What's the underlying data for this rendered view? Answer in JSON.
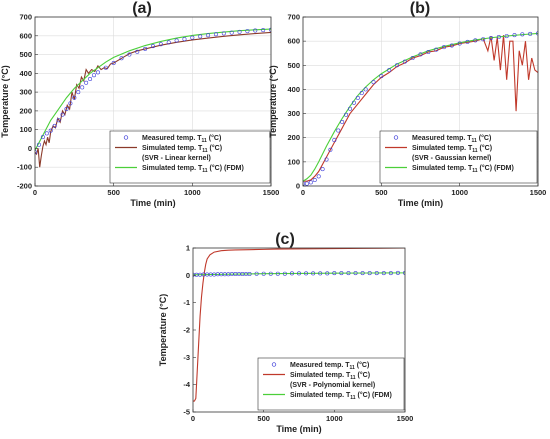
{
  "chart_data": [
    {
      "type": "line",
      "panel_label": "(a)",
      "xlabel": "Time (min)",
      "ylabel": "Temperature (°C)",
      "xlim": [
        0,
        1500
      ],
      "ylim": [
        -200,
        700
      ],
      "xticks": [
        0,
        500,
        1000,
        1500
      ],
      "yticks": [
        -200,
        -100,
        0,
        100,
        200,
        300,
        400,
        500,
        600,
        700
      ],
      "grid": true,
      "legend_position": "bottom-right",
      "series": [
        {
          "name": "Measured temp. T11 (°C)",
          "legend_text": "Measured temp. T",
          "legend_sub": "11",
          "legend_tail": " (°C)",
          "style": "markers",
          "color": "#3b3bd9",
          "x": [
            0,
            25,
            50,
            75,
            100,
            125,
            150,
            175,
            200,
            225,
            250,
            275,
            300,
            325,
            350,
            375,
            400,
            450,
            500,
            550,
            600,
            650,
            700,
            750,
            800,
            850,
            900,
            950,
            1000,
            1050,
            1100,
            1150,
            1200,
            1250,
            1300,
            1350,
            1400,
            1450,
            1500
          ],
          "y": [
            -20,
            20,
            60,
            80,
            95,
            120,
            150,
            180,
            210,
            240,
            270,
            300,
            325,
            350,
            370,
            390,
            405,
            430,
            455,
            480,
            500,
            515,
            530,
            545,
            555,
            565,
            575,
            582,
            590,
            597,
            603,
            608,
            613,
            617,
            621,
            625,
            628,
            630,
            632
          ]
        },
        {
          "name": "Simulated temp. T11 (°C) (SVR - Linear kernel)",
          "legend_text": "Simulated temp. T",
          "legend_sub": "11",
          "legend_tail": " (°C)",
          "legend_line2": "(SVR - Linear kernel)",
          "style": "line",
          "color": "#8b3a2a",
          "x": [
            0,
            10,
            20,
            30,
            40,
            50,
            60,
            70,
            80,
            90,
            100,
            115,
            130,
            145,
            160,
            175,
            190,
            205,
            220,
            235,
            250,
            265,
            280,
            295,
            310,
            325,
            340,
            360,
            380,
            400,
            420,
            440,
            460,
            480,
            500,
            550,
            600,
            650,
            700,
            800,
            900,
            1000,
            1100,
            1200,
            1300,
            1400,
            1500
          ],
          "y": [
            -20,
            -30,
            0,
            -100,
            -40,
            10,
            40,
            20,
            60,
            30,
            90,
            120,
            110,
            160,
            140,
            200,
            180,
            230,
            210,
            300,
            260,
            340,
            320,
            380,
            360,
            420,
            400,
            420,
            410,
            440,
            420,
            430,
            425,
            450,
            455,
            480,
            505,
            520,
            530,
            550,
            565,
            578,
            588,
            597,
            605,
            612,
            618
          ]
        },
        {
          "name": "Simulated temp. T11 (°C) (FDM)",
          "legend_text": "Simulated temp. T",
          "legend_sub": "11",
          "legend_tail": " (°C) (FDM)",
          "style": "line",
          "color": "#4ccf3a",
          "x": [
            0,
            25,
            50,
            75,
            100,
            150,
            200,
            250,
            300,
            350,
            400,
            450,
            500,
            600,
            700,
            800,
            900,
            1000,
            1100,
            1200,
            1300,
            1400,
            1500
          ],
          "y": [
            -10,
            30,
            70,
            110,
            150,
            210,
            270,
            320,
            360,
            400,
            430,
            460,
            485,
            520,
            548,
            570,
            588,
            602,
            612,
            620,
            627,
            632,
            636
          ]
        }
      ]
    },
    {
      "type": "line",
      "panel_label": "(b)",
      "xlabel": "Time (min)",
      "ylabel": "Temperature (°C)",
      "xlim": [
        0,
        1500
      ],
      "ylim": [
        0,
        700
      ],
      "xticks": [
        0,
        500,
        1000,
        1500
      ],
      "yticks": [
        0,
        100,
        200,
        300,
        400,
        500,
        600,
        700
      ],
      "grid": true,
      "legend_position": "bottom-right",
      "series": [
        {
          "name": "Measured temp. T11 (°C)",
          "legend_text": "Measured temp. T",
          "legend_sub": "11",
          "legend_tail": " (°C)",
          "style": "markers",
          "color": "#3b3bd9",
          "x": [
            0,
            25,
            50,
            75,
            100,
            125,
            150,
            175,
            200,
            225,
            250,
            275,
            300,
            325,
            350,
            375,
            400,
            450,
            500,
            550,
            600,
            650,
            700,
            750,
            800,
            850,
            900,
            950,
            1000,
            1050,
            1100,
            1150,
            1200,
            1250,
            1300,
            1350,
            1400,
            1450,
            1500
          ],
          "y": [
            10,
            10,
            15,
            25,
            40,
            70,
            110,
            150,
            190,
            230,
            265,
            295,
            320,
            345,
            365,
            385,
            400,
            430,
            455,
            480,
            500,
            515,
            530,
            545,
            555,
            565,
            575,
            582,
            590,
            597,
            603,
            608,
            613,
            617,
            621,
            625,
            628,
            630,
            632
          ]
        },
        {
          "name": "Simulated temp. T11 (°C) (SVR - Gaussian kernel)",
          "legend_text": "Simulated temp. T",
          "legend_sub": "11",
          "legend_tail": " (°C)",
          "legend_line2": "(SVR - Gaussian kernel)",
          "style": "line",
          "color": "#c0392b",
          "x": [
            0,
            25,
            50,
            75,
            100,
            150,
            200,
            250,
            300,
            350,
            400,
            450,
            500,
            550,
            600,
            650,
            700,
            750,
            800,
            850,
            900,
            950,
            1000,
            1050,
            1100,
            1150,
            1180,
            1200,
            1220,
            1240,
            1260,
            1280,
            1300,
            1320,
            1340,
            1360,
            1380,
            1400,
            1420,
            1440,
            1460,
            1480,
            1500
          ],
          "y": [
            20,
            20,
            25,
            40,
            60,
            120,
            180,
            240,
            300,
            340,
            380,
            420,
            450,
            470,
            495,
            510,
            530,
            540,
            555,
            560,
            575,
            580,
            590,
            595,
            600,
            610,
            560,
            620,
            520,
            615,
            480,
            625,
            440,
            600,
            600,
            310,
            560,
            500,
            600,
            440,
            530,
            480,
            470
          ]
        },
        {
          "name": "Simulated temp. T11 (°C) (FDM)",
          "legend_text": "Simulated temp. T",
          "legend_sub": "11",
          "legend_tail": " (°C) (FDM)",
          "style": "line",
          "color": "#4ccf3a",
          "x": [
            0,
            25,
            50,
            75,
            100,
            150,
            200,
            250,
            300,
            350,
            400,
            450,
            500,
            600,
            700,
            800,
            900,
            1000,
            1100,
            1200,
            1300,
            1400,
            1500
          ],
          "y": [
            20,
            30,
            45,
            70,
            100,
            165,
            225,
            280,
            330,
            375,
            410,
            440,
            465,
            505,
            535,
            560,
            578,
            593,
            605,
            614,
            621,
            627,
            632
          ]
        }
      ]
    },
    {
      "type": "line",
      "panel_label": "(c)",
      "xlabel": "Time (min)",
      "ylabel": "Temperature (°C)",
      "xlim": [
        0,
        1500
      ],
      "ylim": [
        -5,
        1
      ],
      "xticks": [
        0,
        500,
        1000,
        1500
      ],
      "yticks": [
        -5,
        -4,
        -3,
        -2,
        -1,
        0,
        1
      ],
      "grid": false,
      "legend_position": "bottom-right",
      "series": [
        {
          "name": "Measured temp. T11 (°C)",
          "legend_text": "Measured temp. T",
          "legend_sub": "11",
          "legend_tail": " (°C)",
          "style": "markers",
          "color": "#3b3bd9",
          "x": [
            0,
            25,
            50,
            75,
            100,
            125,
            150,
            175,
            200,
            225,
            250,
            275,
            300,
            325,
            350,
            375,
            400,
            450,
            500,
            550,
            600,
            650,
            700,
            750,
            800,
            850,
            900,
            950,
            1000,
            1050,
            1100,
            1150,
            1200,
            1250,
            1300,
            1350,
            1400,
            1450,
            1500
          ],
          "y": [
            0.02,
            0.02,
            0.02,
            0.03,
            0.03,
            0.03,
            0.03,
            0.04,
            0.04,
            0.04,
            0.04,
            0.05,
            0.05,
            0.05,
            0.05,
            0.05,
            0.05,
            0.06,
            0.06,
            0.06,
            0.06,
            0.06,
            0.07,
            0.07,
            0.07,
            0.07,
            0.07,
            0.07,
            0.08,
            0.08,
            0.08,
            0.08,
            0.08,
            0.08,
            0.08,
            0.08,
            0.08,
            0.09,
            0.09
          ]
        },
        {
          "name": "Simulated temp. T11 (°C) (SVR - Polynomial kernel)",
          "legend_text": "Simulated temp. T",
          "legend_sub": "11",
          "legend_tail": " (°C)",
          "legend_line2": "(SVR - Polynomial kernel)",
          "style": "line",
          "color": "#c0392b",
          "x": [
            0,
            10,
            20,
            30,
            40,
            50,
            60,
            70,
            80,
            90,
            100,
            120,
            150,
            200,
            250,
            300,
            400,
            500,
            600,
            800,
            1000,
            1200,
            1500
          ],
          "y": [
            -4.6,
            -4.6,
            -4.5,
            -3.5,
            -2.5,
            -1.5,
            -0.8,
            -0.3,
            0.1,
            0.4,
            0.6,
            0.75,
            0.85,
            0.9,
            0.92,
            0.93,
            0.94,
            0.95,
            0.96,
            0.97,
            0.98,
            0.99,
            1.0
          ]
        },
        {
          "name": "Simulated temp. T11 (°C) (FDM)",
          "legend_text": "Simulated temp. T",
          "legend_sub": "11",
          "legend_tail": " (°C) (FDM)",
          "style": "line",
          "color": "#4ccf3a",
          "x": [
            0,
            250,
            500,
            750,
            1000,
            1250,
            1500
          ],
          "y": [
            0.02,
            0.04,
            0.06,
            0.07,
            0.08,
            0.085,
            0.09
          ]
        }
      ]
    }
  ]
}
